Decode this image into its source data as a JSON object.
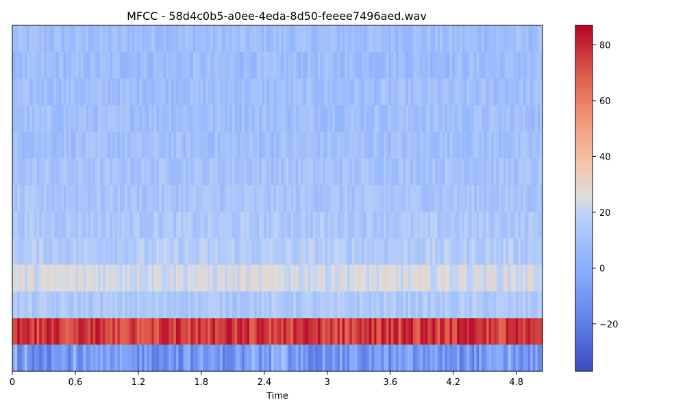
{
  "chart_data": {
    "type": "heatmap",
    "title": "MFCC - 58d4c0b5-a0ee-4eda-8d50-feeee7496aed.wav",
    "xlabel": "Time",
    "ylabel": "",
    "x_ticks": [
      "0",
      "0.6",
      "1.2",
      "1.8",
      "2.4",
      "3",
      "3.6",
      "4.2",
      "4.8"
    ],
    "x_tick_values": [
      0,
      0.6,
      1.2,
      1.8,
      2.4,
      3.0,
      3.6,
      4.2,
      4.8
    ],
    "xlim": [
      0,
      5.05
    ],
    "n_coefficients": 13,
    "colorbar": {
      "colormap": "coolwarm",
      "range": [
        -37,
        87
      ],
      "ticks": [
        "−20",
        "0",
        "20",
        "40",
        "60",
        "80"
      ],
      "tick_values": [
        -20,
        0,
        20,
        40,
        60,
        80
      ]
    },
    "coefficient_rows_top_to_bottom": [
      {
        "index": 12,
        "typical_value": 8
      },
      {
        "index": 11,
        "typical_value": 7
      },
      {
        "index": 10,
        "typical_value": 8
      },
      {
        "index": 9,
        "typical_value": 9
      },
      {
        "index": 8,
        "typical_value": 9
      },
      {
        "index": 7,
        "typical_value": 11
      },
      {
        "index": 6,
        "typical_value": 12
      },
      {
        "index": 5,
        "typical_value": 14
      },
      {
        "index": 4,
        "typical_value": 16
      },
      {
        "index": 3,
        "typical_value": 24
      },
      {
        "index": 2,
        "typical_value": 14
      },
      {
        "index": 1,
        "typical_value": 75
      },
      {
        "index": 0,
        "typical_value": -10
      }
    ],
    "grid": false
  }
}
